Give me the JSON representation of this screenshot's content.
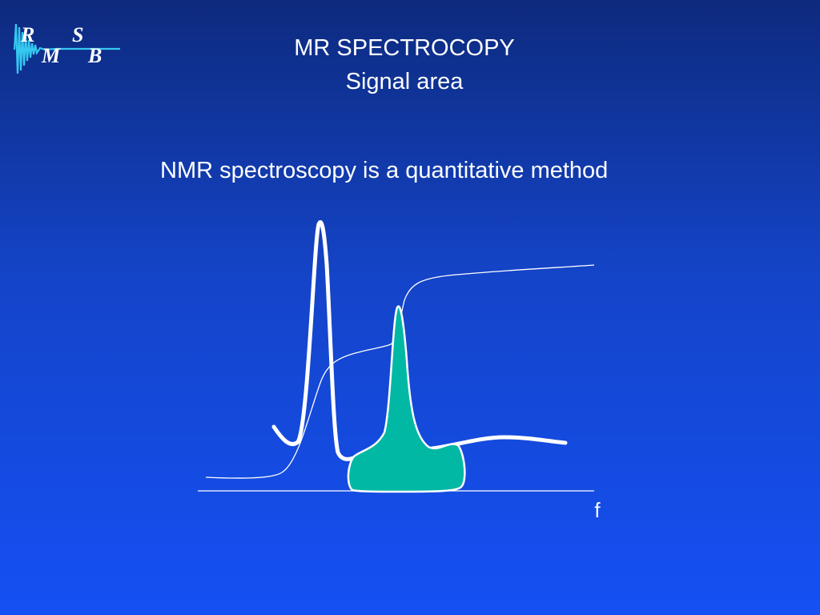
{
  "logo": {
    "letters": [
      "R",
      "S",
      "M",
      "B"
    ]
  },
  "title": "MR SPECTROCOPY",
  "subtitle": "Signal area",
  "statement": "NMR spectroscopy is a quantitative method",
  "axis_label": "f"
}
